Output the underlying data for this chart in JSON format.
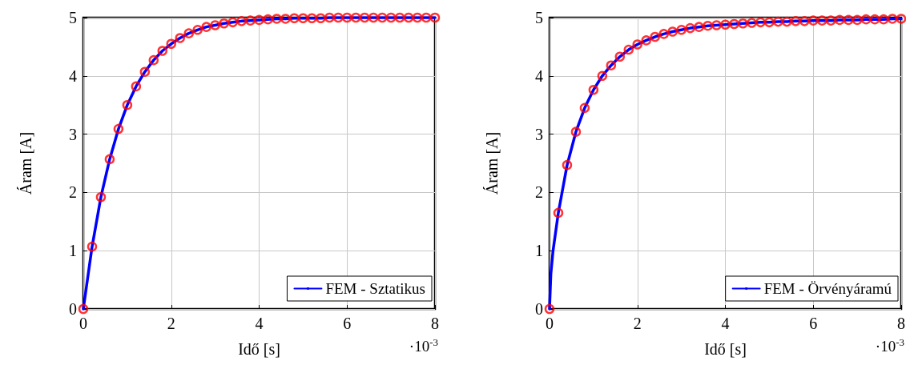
{
  "chart_data": [
    {
      "type": "line",
      "xlabel": "Idő [s]",
      "ylabel": "Áram [A]",
      "annotations": [
        "·10$^{-3}$"
      ],
      "xlim": [
        0,
        8
      ],
      "xticks": [
        0,
        2,
        4,
        6,
        8
      ],
      "ylim": [
        0,
        5
      ],
      "yticks": [
        0,
        1,
        2,
        3,
        4,
        5
      ],
      "grid": true,
      "legend": "bottom right",
      "series": [
        {
          "name": "FEM - Sztatikus",
          "color": "#0000ff",
          "marker": "none",
          "line_style": "solid",
          "x": [
            0,
            0.2,
            0.4,
            0.6,
            0.8,
            1,
            1.2,
            1.4,
            1.6,
            1.8,
            2,
            2.2,
            2.4,
            2.6,
            2.8,
            3,
            3.2,
            3.4,
            3.6,
            3.8,
            4,
            4.2,
            4.4,
            4.6,
            4.8,
            5,
            5.2,
            5.4,
            5.6,
            5.8,
            6,
            6.2,
            6.4,
            6.6,
            6.8,
            7,
            7.2,
            7.4,
            7.6,
            7.8,
            8
          ],
          "values": [
            0,
            1.07,
            1.92,
            2.57,
            3.09,
            3.5,
            3.82,
            4.07,
            4.27,
            4.43,
            4.55,
            4.65,
            4.73,
            4.79,
            4.84,
            4.87,
            4.9,
            4.92,
            4.94,
            4.95,
            4.96,
            4.97,
            4.98,
            4.98,
            4.99,
            4.99,
            4.99,
            4.99,
            5,
            5,
            5,
            5,
            5,
            5,
            5,
            5,
            5,
            5,
            5,
            5,
            5
          ]
        },
        {
          "type": "scatter",
          "color": "#ff0000",
          "marker": "circle",
          "x": [
            0,
            0.2,
            0.4,
            0.6,
            0.8,
            1,
            1.2,
            1.4,
            1.6,
            1.8,
            2,
            2.2,
            2.4,
            2.6,
            2.8,
            3,
            3.2,
            3.4,
            3.6,
            3.8,
            4,
            4.2,
            4.4,
            4.6,
            4.8,
            5,
            5.2,
            5.4,
            5.6,
            5.8,
            6,
            6.2,
            6.4,
            6.6,
            6.8,
            7,
            7.2,
            7.4,
            7.6,
            7.8,
            8
          ],
          "values": [
            0,
            1.07,
            1.92,
            2.57,
            3.09,
            3.5,
            3.82,
            4.07,
            4.27,
            4.43,
            4.55,
            4.65,
            4.73,
            4.79,
            4.84,
            4.87,
            4.9,
            4.92,
            4.94,
            4.95,
            4.96,
            4.97,
            4.98,
            4.98,
            4.99,
            4.99,
            4.99,
            4.99,
            5,
            5,
            5,
            5,
            5,
            5,
            5,
            5,
            5,
            5,
            5,
            5,
            5
          ]
        }
      ]
    },
    {
      "type": "line",
      "xlabel": "Idő [s]",
      "ylabel": "Áram [A]",
      "annotations": [
        "·10$^{-3}$"
      ],
      "xlim": [
        0,
        8
      ],
      "xticks": [
        0,
        2,
        4,
        6,
        8
      ],
      "ylim": [
        0,
        5
      ],
      "yticks": [
        0,
        1,
        2,
        3,
        4,
        5
      ],
      "grid": true,
      "legend": "bottom right",
      "series": [
        {
          "name": "FEM - Örvényáramú",
          "color": "#0000ff",
          "marker": "none",
          "line_style": "solid",
          "x": [
            0,
            0.03,
            0.08,
            0.2,
            0.4,
            0.6,
            0.8,
            1,
            1.2,
            1.4,
            1.6,
            1.8,
            2,
            2.2,
            2.4,
            2.6,
            2.8,
            3,
            3.2,
            3.4,
            3.6,
            3.8,
            4,
            4.2,
            4.4,
            4.6,
            4.8,
            5,
            5.2,
            5.4,
            5.6,
            5.8,
            6,
            6.2,
            6.4,
            6.6,
            6.8,
            7,
            7.2,
            7.4,
            7.6,
            7.8,
            8
          ],
          "values": [
            0,
            0.6,
            1.0,
            1.65,
            2.47,
            3.04,
            3.45,
            3.76,
            4.0,
            4.18,
            4.33,
            4.45,
            4.54,
            4.61,
            4.67,
            4.72,
            4.76,
            4.79,
            4.82,
            4.84,
            4.86,
            4.87,
            4.88,
            4.89,
            4.9,
            4.91,
            4.92,
            4.92,
            4.93,
            4.93,
            4.94,
            4.94,
            4.95,
            4.95,
            4.95,
            4.96,
            4.96,
            4.96,
            4.97,
            4.97,
            4.97,
            4.98,
            4.98
          ]
        },
        {
          "type": "scatter",
          "color": "#ff0000",
          "marker": "circle",
          "x": [
            0,
            0.2,
            0.4,
            0.6,
            0.8,
            1,
            1.2,
            1.4,
            1.6,
            1.8,
            2,
            2.2,
            2.4,
            2.6,
            2.8,
            3,
            3.2,
            3.4,
            3.6,
            3.8,
            4,
            4.2,
            4.4,
            4.6,
            4.8,
            5,
            5.2,
            5.4,
            5.6,
            5.8,
            6,
            6.2,
            6.4,
            6.6,
            6.8,
            7,
            7.2,
            7.4,
            7.6,
            7.8,
            8
          ],
          "values": [
            0,
            1.65,
            2.47,
            3.04,
            3.45,
            3.76,
            4.0,
            4.18,
            4.33,
            4.45,
            4.54,
            4.61,
            4.67,
            4.72,
            4.76,
            4.79,
            4.82,
            4.84,
            4.86,
            4.87,
            4.88,
            4.89,
            4.9,
            4.91,
            4.92,
            4.92,
            4.93,
            4.93,
            4.94,
            4.94,
            4.95,
            4.95,
            4.95,
            4.96,
            4.96,
            4.96,
            4.97,
            4.97,
            4.97,
            4.98,
            4.98
          ]
        }
      ]
    }
  ]
}
